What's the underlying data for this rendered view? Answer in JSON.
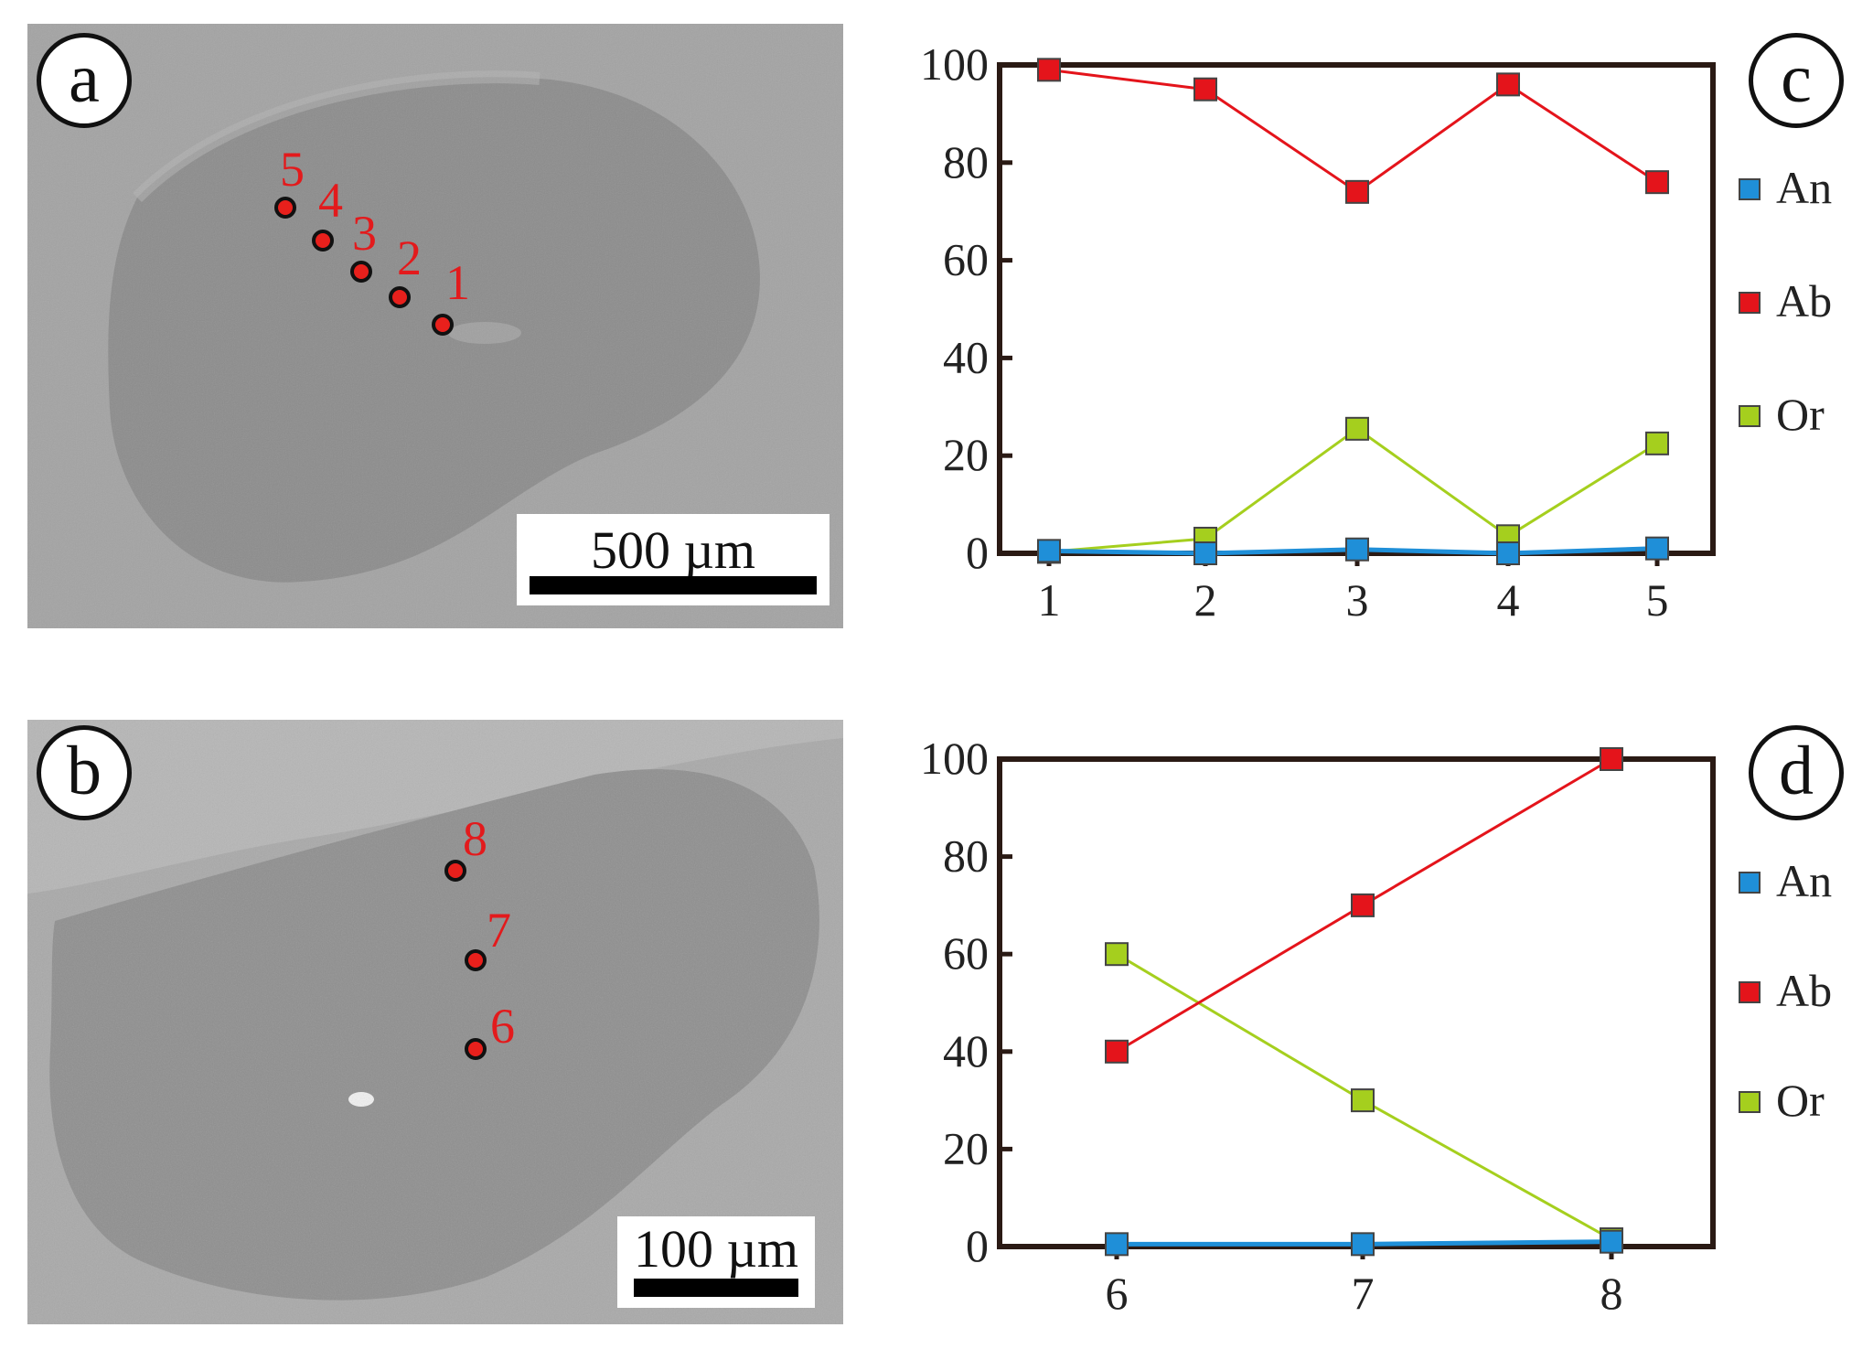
{
  "panels": {
    "a": {
      "label": "a",
      "scale_text": "500 µm",
      "points": [
        {
          "id": "1"
        },
        {
          "id": "2"
        },
        {
          "id": "3"
        },
        {
          "id": "4"
        },
        {
          "id": "5"
        }
      ]
    },
    "b": {
      "label": "b",
      "scale_text": "100 µm",
      "points": [
        {
          "id": "6"
        },
        {
          "id": "7"
        },
        {
          "id": "8"
        }
      ]
    },
    "c": {
      "label": "c"
    },
    "d": {
      "label": "d"
    }
  },
  "colors": {
    "An": "#1f8fd8",
    "Ab": "#e4141b",
    "Or": "#a5cf1e"
  },
  "chart_data": [
    {
      "type": "line",
      "panel": "c",
      "categories": [
        "1",
        "2",
        "3",
        "4",
        "5"
      ],
      "ylim": [
        0,
        100
      ],
      "yticks": [
        "0",
        "20",
        "40",
        "60",
        "80",
        "100"
      ],
      "series": [
        {
          "name": "An",
          "values": [
            0.5,
            0,
            0.8,
            0,
            1
          ]
        },
        {
          "name": "Ab",
          "values": [
            99,
            95,
            74,
            96,
            76
          ]
        },
        {
          "name": "Or",
          "values": [
            0.3,
            3,
            25.5,
            3.5,
            22.5
          ]
        }
      ],
      "legend": [
        "An",
        "Ab",
        "Or"
      ],
      "legend_position": "right"
    },
    {
      "type": "line",
      "panel": "d",
      "categories": [
        "6",
        "7",
        "8"
      ],
      "ylim": [
        0,
        100
      ],
      "yticks": [
        "0",
        "20",
        "40",
        "60",
        "80",
        "100"
      ],
      "series": [
        {
          "name": "An",
          "values": [
            0.5,
            0.5,
            1
          ]
        },
        {
          "name": "Ab",
          "values": [
            40,
            70,
            100
          ]
        },
        {
          "name": "Or",
          "values": [
            60,
            30,
            1.5
          ]
        }
      ],
      "legend": [
        "An",
        "Ab",
        "Or"
      ],
      "legend_position": "right"
    }
  ]
}
